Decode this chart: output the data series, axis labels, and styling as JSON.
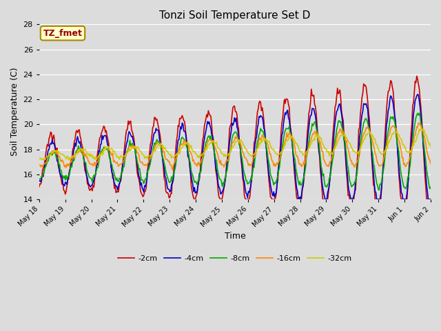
{
  "title": "Tonzi Soil Temperature Set D",
  "xlabel": "Time",
  "ylabel": "Soil Temperature (C)",
  "ylim": [
    14,
    28
  ],
  "annotation_text": "TZ_fmet",
  "annotation_bg": "#ffffcc",
  "annotation_border": "#aa8800",
  "annotation_text_color": "#990000",
  "bg_color": "#dcdcdc",
  "plot_bg": "#dcdcdc",
  "line_colors": [
    "#cc0000",
    "#0000cc",
    "#00aa00",
    "#ff8800",
    "#cccc00"
  ],
  "line_labels": [
    "-2cm",
    "-4cm",
    "-8cm",
    "-16cm",
    "-32cm"
  ],
  "x_tick_labels": [
    "May 18",
    "May 19",
    "May 20",
    "May 21",
    "May 22",
    "May 23",
    "May 24",
    "May 25",
    "May 26",
    "May 27",
    "May 28",
    "May 29",
    "May 30",
    "May 31",
    "Jun 1",
    "Jun 2"
  ],
  "num_points": 480,
  "days": 15,
  "figwidth": 6.4,
  "figheight": 4.8,
  "dpi": 100
}
